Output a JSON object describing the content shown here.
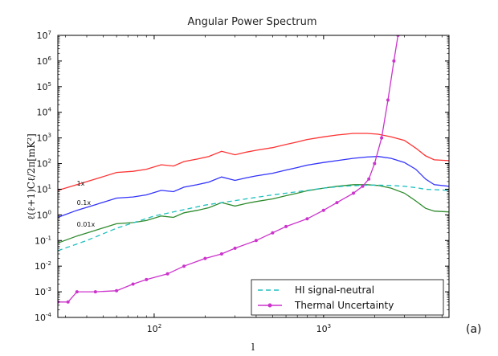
{
  "chart_data": {
    "type": "line",
    "title": "Angular Power Spectrum",
    "xlabel": "l",
    "ylabel": "ℓ(ℓ+1)Cℓ/2π[mK²]",
    "panel_label": "(a)",
    "xscale": "log",
    "yscale": "log",
    "xlim": [
      27,
      5500
    ],
    "ylim": [
      0.0001,
      10000000
    ],
    "x_ticks": [
      {
        "value": 100,
        "base": "10",
        "exp": "2"
      },
      {
        "value": 1000,
        "base": "10",
        "exp": "3"
      }
    ],
    "y_ticks": [
      {
        "value": 0.0001,
        "base": "10",
        "exp": "-4"
      },
      {
        "value": 0.001,
        "base": "10",
        "exp": "-3"
      },
      {
        "value": 0.01,
        "base": "10",
        "exp": "-2"
      },
      {
        "value": 0.1,
        "base": "10",
        "exp": "-1"
      },
      {
        "value": 1,
        "base": "10",
        "exp": "0"
      },
      {
        "value": 10,
        "base": "10",
        "exp": "1"
      },
      {
        "value": 100,
        "base": "10",
        "exp": "2"
      },
      {
        "value": 1000,
        "base": "10",
        "exp": "3"
      },
      {
        "value": 10000,
        "base": "10",
        "exp": "4"
      },
      {
        "value": 100000,
        "base": "10",
        "exp": "5"
      },
      {
        "value": 1000000,
        "base": "10",
        "exp": "6"
      },
      {
        "value": 10000000,
        "base": "10",
        "exp": "7"
      }
    ],
    "annotations": [
      {
        "text": "1x",
        "x": 30,
        "y": 14
      },
      {
        "text": "0.1x",
        "x": 30,
        "y": 2.4
      },
      {
        "text": "0.01x",
        "x": 30,
        "y": 0.35
      }
    ],
    "legend": {
      "placement": "lower right",
      "entries": [
        "HI signal-neutral",
        "Thermal Uncertainty"
      ]
    },
    "series": [
      {
        "color": "#ff3333",
        "style": "solid",
        "x": [
          27,
          35,
          45,
          60,
          75,
          90,
          110,
          130,
          150,
          180,
          210,
          250,
          300,
          350,
          400,
          500,
          600,
          700,
          800,
          1000,
          1200,
          1500,
          1800,
          2100,
          2500,
          3000,
          3500,
          4000,
          4500,
          5500
        ],
        "y": [
          9,
          15,
          25,
          45,
          50,
          60,
          90,
          80,
          120,
          150,
          190,
          300,
          220,
          280,
          330,
          420,
          560,
          700,
          870,
          1100,
          1300,
          1500,
          1500,
          1400,
          1100,
          800,
          400,
          200,
          140,
          130
        ]
      },
      {
        "color": "#3333ff",
        "style": "solid",
        "x": [
          27,
          35,
          45,
          60,
          75,
          90,
          110,
          130,
          150,
          180,
          210,
          250,
          300,
          350,
          400,
          500,
          600,
          700,
          800,
          1000,
          1200,
          1500,
          1800,
          2100,
          2500,
          3000,
          3500,
          4000,
          4500,
          5500
        ],
        "y": [
          0.8,
          1.5,
          2.5,
          4.5,
          5,
          6,
          9,
          8,
          12,
          15,
          19,
          30,
          22,
          28,
          33,
          42,
          56,
          70,
          87,
          110,
          130,
          160,
          180,
          190,
          160,
          110,
          60,
          25,
          15,
          13
        ]
      },
      {
        "color": "#2e8b2e",
        "style": "solid",
        "x": [
          27,
          35,
          45,
          60,
          75,
          90,
          110,
          130,
          150,
          180,
          210,
          250,
          300,
          350,
          400,
          500,
          600,
          700,
          800,
          1000,
          1200,
          1500,
          1800,
          2100,
          2500,
          3000,
          3500,
          4000,
          4500,
          5500
        ],
        "y": [
          0.08,
          0.15,
          0.25,
          0.45,
          0.5,
          0.6,
          0.9,
          0.8,
          1.2,
          1.5,
          1.9,
          3,
          2.2,
          2.8,
          3.3,
          4.2,
          5.6,
          7,
          8.7,
          11,
          13,
          15,
          15,
          14,
          11,
          7,
          3.5,
          1.8,
          1.4,
          1.3
        ]
      },
      {
        "name": "HI signal-neutral",
        "color": "#20c0c0",
        "style": "dashed",
        "x": [
          27,
          40,
          60,
          100,
          150,
          200,
          300,
          400,
          500,
          600,
          800,
          1000,
          1300,
          1600,
          2000,
          2500,
          3000,
          3500,
          4000,
          5500
        ],
        "y": [
          0.04,
          0.1,
          0.3,
          0.9,
          1.6,
          2.4,
          3.6,
          4.8,
          6,
          7,
          9,
          11,
          13,
          14,
          14.5,
          14,
          13,
          11.5,
          10,
          9
        ]
      },
      {
        "name": "Thermal Uncertainty",
        "color": "#cc33cc",
        "style": "solid-markers",
        "x": [
          27,
          31,
          35,
          45,
          60,
          75,
          90,
          120,
          150,
          200,
          250,
          300,
          400,
          500,
          600,
          800,
          1000,
          1200,
          1500,
          1700,
          1850,
          2000,
          2200,
          2400,
          2600,
          2750
        ],
        "y": [
          0.0004,
          0.0004,
          0.001,
          0.001,
          0.0011,
          0.002,
          0.003,
          0.005,
          0.01,
          0.02,
          0.03,
          0.05,
          0.1,
          0.2,
          0.35,
          0.7,
          1.5,
          3,
          7,
          13,
          25,
          100,
          1000,
          30000,
          1000000,
          10000000
        ]
      }
    ]
  }
}
